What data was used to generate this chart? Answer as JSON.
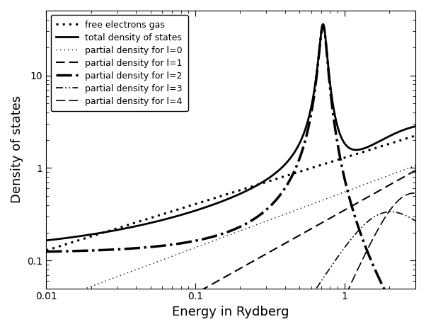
{
  "xlabel": "Energy in Rydberg",
  "ylabel": "Density of states",
  "xlim_log": [
    -2.0,
    0.477
  ],
  "ylim_log": [
    -1.3,
    1.7
  ],
  "title": "",
  "legend_labels": [
    "total density of states",
    "partial density for l=0",
    "partial density for l=1",
    "partial density for l=2",
    "partial density for l=3",
    "partial density for l=4",
    "free electrons gas"
  ],
  "line_styles": [
    "-",
    ":",
    "--",
    "-.",
    "-.",
    "--",
    ":"
  ],
  "line_widths": [
    2.0,
    1.2,
    1.8,
    2.5,
    1.2,
    1.2,
    2.5
  ],
  "colors": [
    "black",
    "black",
    "black",
    "black",
    "black",
    "black",
    "black"
  ],
  "background_color": "#ffffff",
  "fig_width": 6.02,
  "fig_height": 4.65,
  "dpi": 100
}
